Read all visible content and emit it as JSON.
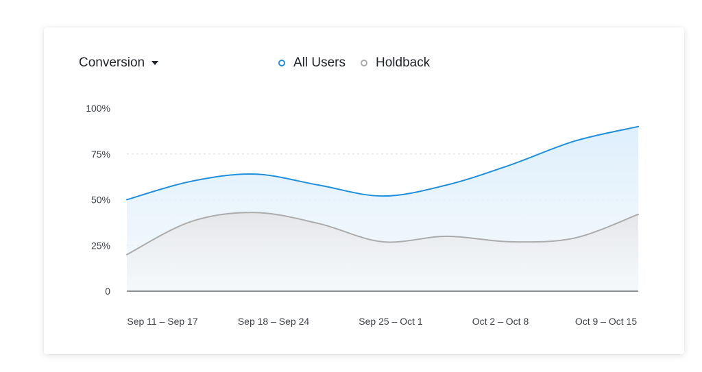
{
  "header": {
    "metric_label": "Conversion",
    "metric_icon": "caret-down-icon"
  },
  "legend": {
    "items": [
      {
        "label": "All Users",
        "color": "#1e8fde"
      },
      {
        "label": "Holdback",
        "color": "#ababab"
      }
    ]
  },
  "chart_data": {
    "type": "area",
    "categories": [
      "Sep 11 – Sep 17",
      "Sep 18 – Sep 24",
      "Sep 25 – Oct 1",
      "Oct 2 – Oct 8",
      "Oct 9 – Oct 15"
    ],
    "y_ticks": [
      "0",
      "25%",
      "50%",
      "75%",
      "100%"
    ],
    "y_tick_values": [
      0,
      25,
      50,
      75,
      100
    ],
    "ylim": [
      0,
      100
    ],
    "grid": true,
    "legend_position": "top",
    "series": [
      {
        "name": "All Users",
        "color": "#1e8fde",
        "x": [
          0,
          0.5,
          1,
          1.5,
          2,
          2.5,
          3,
          3.5,
          4
        ],
        "values": [
          50,
          60,
          64,
          58,
          52,
          58,
          69,
          82,
          90
        ]
      },
      {
        "name": "Holdback",
        "color": "#ababab",
        "x": [
          0,
          0.5,
          1,
          1.5,
          2,
          2.5,
          3,
          3.5,
          4
        ],
        "values": [
          20,
          38,
          43,
          37,
          27,
          30,
          27,
          29,
          42
        ]
      }
    ],
    "title": "",
    "xlabel": "",
    "ylabel": ""
  }
}
